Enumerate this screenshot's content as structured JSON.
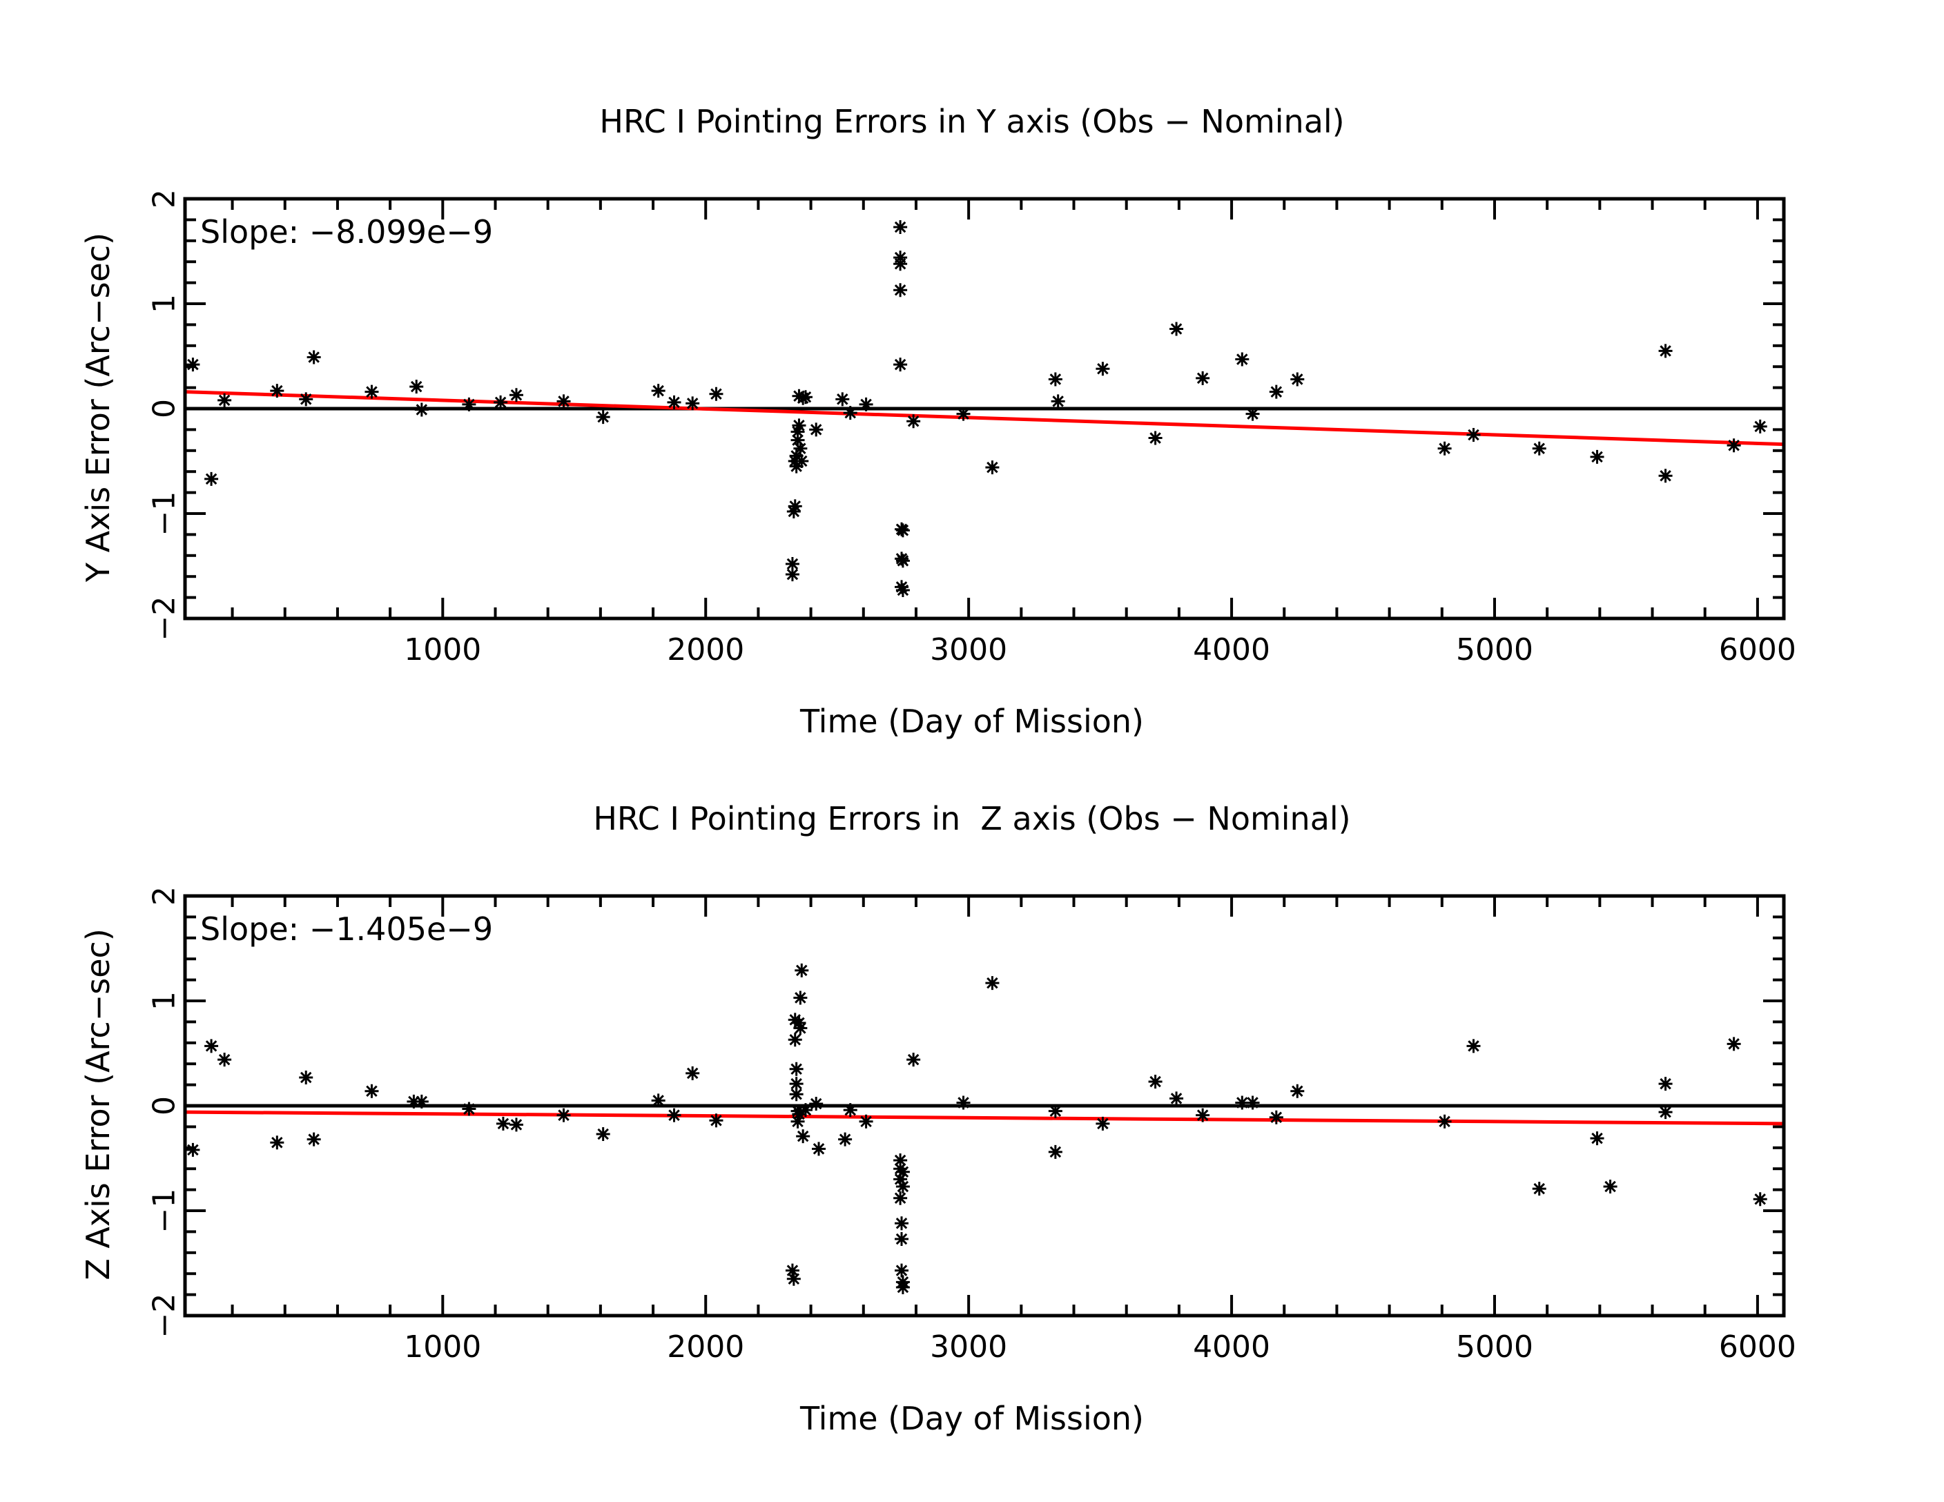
{
  "chart_data": [
    {
      "type": "scatter",
      "title": "HRC I Pointing Errors in Y axis (Obs - Nominal)",
      "xlabel": "Time (Day of Mission)",
      "ylabel": "Y Axis Error (Arc-sec)",
      "annotation": "Slope: -8.099e-9",
      "xlim": [
        20,
        6100
      ],
      "ylim": [
        -2,
        2
      ],
      "xticks": [
        1000,
        2000,
        3000,
        4000,
        5000,
        6000
      ],
      "yticks": [
        -2,
        -1,
        0,
        1,
        2
      ],
      "reference_line_y": 0,
      "fit_line": {
        "x": [
          20,
          6100
        ],
        "y": [
          0.16,
          -0.34
        ],
        "color": "#ff0000"
      },
      "marker": "*",
      "grid": false,
      "points": [
        [
          50,
          0.42
        ],
        [
          120,
          -0.67
        ],
        [
          170,
          0.08
        ],
        [
          370,
          0.17
        ],
        [
          480,
          0.09
        ],
        [
          510,
          0.49
        ],
        [
          730,
          0.16
        ],
        [
          900,
          0.21
        ],
        [
          920,
          -0.01
        ],
        [
          1100,
          0.04
        ],
        [
          1220,
          0.06
        ],
        [
          1280,
          0.13
        ],
        [
          1460,
          0.07
        ],
        [
          1610,
          -0.08
        ],
        [
          1820,
          0.17
        ],
        [
          1880,
          0.06
        ],
        [
          1950,
          0.05
        ],
        [
          2040,
          0.14
        ],
        [
          2330,
          -1.48
        ],
        [
          2330,
          -1.58
        ],
        [
          2335,
          -0.98
        ],
        [
          2340,
          -0.93
        ],
        [
          2340,
          -0.5
        ],
        [
          2345,
          -0.45
        ],
        [
          2345,
          -0.55
        ],
        [
          2350,
          -0.3
        ],
        [
          2350,
          -0.22
        ],
        [
          2355,
          -0.16
        ],
        [
          2355,
          0.12
        ],
        [
          2360,
          -0.38
        ],
        [
          2365,
          -0.5
        ],
        [
          2370,
          0.1
        ],
        [
          2380,
          0.11
        ],
        [
          2420,
          -0.2
        ],
        [
          2520,
          0.09
        ],
        [
          2550,
          -0.04
        ],
        [
          2610,
          0.04
        ],
        [
          2740,
          1.73
        ],
        [
          2740,
          1.44
        ],
        [
          2740,
          1.38
        ],
        [
          2740,
          1.13
        ],
        [
          2740,
          0.42
        ],
        [
          2745,
          -1.15
        ],
        [
          2745,
          -1.43
        ],
        [
          2745,
          -1.7
        ],
        [
          2750,
          -1.16
        ],
        [
          2750,
          -1.45
        ],
        [
          2750,
          -1.73
        ],
        [
          2790,
          -0.12
        ],
        [
          2980,
          -0.05
        ],
        [
          3090,
          -0.56
        ],
        [
          3330,
          0.28
        ],
        [
          3340,
          0.07
        ],
        [
          3510,
          0.38
        ],
        [
          3710,
          -0.28
        ],
        [
          3790,
          0.76
        ],
        [
          3890,
          0.29
        ],
        [
          4040,
          0.47
        ],
        [
          4080,
          -0.05
        ],
        [
          4170,
          0.16
        ],
        [
          4250,
          0.28
        ],
        [
          4810,
          -0.38
        ],
        [
          4920,
          -0.25
        ],
        [
          5170,
          -0.38
        ],
        [
          5390,
          -0.46
        ],
        [
          5650,
          0.55
        ],
        [
          5650,
          -0.64
        ],
        [
          5910,
          -0.35
        ],
        [
          6010,
          -0.17
        ]
      ]
    },
    {
      "type": "scatter",
      "title": "HRC I Pointing Errors in  Z axis (Obs - Nominal)",
      "xlabel": "Time (Day of Mission)",
      "ylabel": "Z Axis Error (Arc-sec)",
      "annotation": "Slope: -1.405e-9",
      "xlim": [
        20,
        6100
      ],
      "ylim": [
        -2,
        2
      ],
      "xticks": [
        1000,
        2000,
        3000,
        4000,
        5000,
        6000
      ],
      "yticks": [
        -2,
        -1,
        0,
        1,
        2
      ],
      "reference_line_y": 0,
      "fit_line": {
        "x": [
          20,
          6100
        ],
        "y": [
          -0.06,
          -0.17
        ],
        "color": "#ff0000"
      },
      "marker": "*",
      "grid": false,
      "points": [
        [
          50,
          -0.42
        ],
        [
          120,
          0.57
        ],
        [
          170,
          0.44
        ],
        [
          370,
          -0.35
        ],
        [
          480,
          0.27
        ],
        [
          510,
          -0.32
        ],
        [
          730,
          0.14
        ],
        [
          890,
          0.04
        ],
        [
          920,
          0.04
        ],
        [
          1100,
          -0.03
        ],
        [
          1230,
          -0.17
        ],
        [
          1280,
          -0.18
        ],
        [
          1460,
          -0.09
        ],
        [
          1610,
          -0.27
        ],
        [
          1820,
          0.05
        ],
        [
          1880,
          -0.09
        ],
        [
          1950,
          0.31
        ],
        [
          2040,
          -0.14
        ],
        [
          2330,
          -1.57
        ],
        [
          2335,
          -1.65
        ],
        [
          2340,
          0.82
        ],
        [
          2340,
          0.63
        ],
        [
          2345,
          0.35
        ],
        [
          2345,
          0.21
        ],
        [
          2345,
          0.11
        ],
        [
          2350,
          -0.05
        ],
        [
          2350,
          -0.15
        ],
        [
          2355,
          -0.08
        ],
        [
          2355,
          0.79
        ],
        [
          2360,
          0.74
        ],
        [
          2360,
          1.03
        ],
        [
          2365,
          1.29
        ],
        [
          2370,
          -0.29
        ],
        [
          2380,
          -0.04
        ],
        [
          2420,
          0.02
        ],
        [
          2430,
          -0.41
        ],
        [
          2530,
          -0.32
        ],
        [
          2550,
          -0.04
        ],
        [
          2610,
          -0.15
        ],
        [
          2740,
          -0.52
        ],
        [
          2740,
          -0.6
        ],
        [
          2740,
          -0.7
        ],
        [
          2740,
          -0.88
        ],
        [
          2745,
          -1.12
        ],
        [
          2745,
          -1.27
        ],
        [
          2745,
          -1.57
        ],
        [
          2750,
          -1.68
        ],
        [
          2750,
          -1.73
        ],
        [
          2750,
          -0.77
        ],
        [
          2750,
          -0.63
        ],
        [
          2790,
          0.44
        ],
        [
          2980,
          0.03
        ],
        [
          3090,
          1.17
        ],
        [
          3330,
          -0.05
        ],
        [
          3330,
          -0.44
        ],
        [
          3510,
          -0.17
        ],
        [
          3710,
          0.23
        ],
        [
          3790,
          0.07
        ],
        [
          3890,
          -0.09
        ],
        [
          4040,
          0.03
        ],
        [
          4080,
          0.03
        ],
        [
          4170,
          -0.11
        ],
        [
          4250,
          0.14
        ],
        [
          4810,
          -0.15
        ],
        [
          4920,
          0.57
        ],
        [
          5170,
          -0.79
        ],
        [
          5390,
          -0.31
        ],
        [
          5440,
          -0.77
        ],
        [
          5650,
          0.21
        ],
        [
          5650,
          -0.06
        ],
        [
          5910,
          0.59
        ],
        [
          6010,
          -0.89
        ]
      ]
    }
  ]
}
